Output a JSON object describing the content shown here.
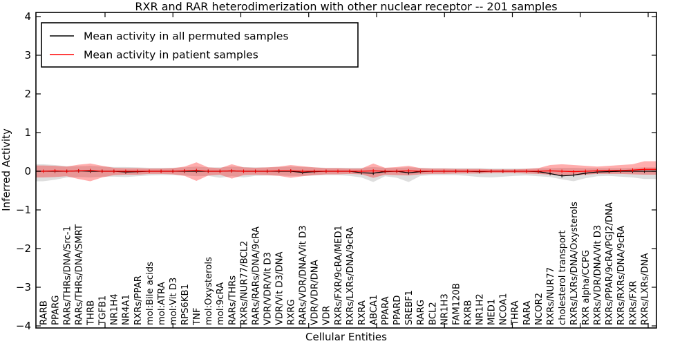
{
  "chart": {
    "title": "RXR and RAR heterodimerization with other nuclear receptor -- 201 samples",
    "xlabel": "Cellular Entities",
    "ylabel": "Inferred Activity"
  },
  "chart_data": {
    "type": "line",
    "title": "RXR and RAR heterodimerization with other nuclear receptor -- 201 samples",
    "sample_count": 201,
    "xlabel": "Cellular Entities",
    "ylabel": "Inferred Activity",
    "ylim": [
      -4,
      4
    ],
    "yticks": [
      4,
      3,
      2,
      1,
      0,
      -1,
      -2,
      -3,
      -4
    ],
    "ytick_labels": [
      "4",
      "3",
      "2",
      "1",
      "0",
      "−1",
      "−2",
      "−3",
      "−4"
    ],
    "grid": false,
    "legend_position": "upper left",
    "categories": [
      "RARB",
      "PPARG",
      "RARs/THRs/DNA/Src-1",
      "RARs/THRs/DNA/SMRT",
      "THRB",
      "TGFB1",
      "NR1H4",
      "NR4A1",
      "RXRs/PPAR",
      "mol:Bile acids",
      "mol:ATRA",
      "mol:Vit D3",
      "RPS6KB1",
      "TNF",
      "mol:Oxysterols",
      "mol:9cRA",
      "RARs/THRs",
      "RXRs/NUR77/BCL2",
      "RARs/RARs/DNA/9cRA",
      "VDR/VDR/Vit D3",
      "VDR/Vit D3/DNA",
      "RXRG",
      "RARs/VDR/DNA/Vit D3",
      "VDR/VDR/DNA",
      "VDR",
      "RXRs/FXR/9cRA/MED1",
      "RXRs/LXRs/DNA/9cRA",
      "RXRA",
      "ABCA1",
      "PPARA",
      "PPARD",
      "SREBF1",
      "RARG",
      "BCL2",
      "NR1H3",
      "FAM120B",
      "RXRB",
      "NR1H2",
      "MED1",
      "NCOA1",
      "THRA",
      "RARA",
      "NCOR2",
      "RXRs/NUR77",
      "cholesterol transport",
      "RXRs/LXRs/DNA/Oxysterols",
      "RXR alpha/CCPG",
      "RXRs/VDR/DNA/Vit D3",
      "RXRs/PPAR/9cRA/PGJ2/DNA",
      "RXRs/RXRs/DNA/9cRA",
      "RXRs/FXR",
      "RXRs/LXRs/DNA"
    ],
    "series": [
      {
        "name": "Mean activity in all permuted samples",
        "color": "#000000",
        "values": [
          0,
          0,
          0,
          0.01,
          0,
          0,
          0,
          -0.02,
          -0.01,
          0,
          0,
          0,
          0,
          0,
          0,
          0,
          0.01,
          0,
          0,
          0,
          0,
          0,
          -0.03,
          -0.01,
          0,
          0,
          0,
          -0.04,
          -0.05,
          -0.01,
          0,
          -0.04,
          -0.01,
          0,
          0,
          0,
          0,
          -0.01,
          0,
          0,
          0,
          0,
          -0.01,
          -0.06,
          -0.12,
          -0.1,
          -0.05,
          -0.02,
          -0.01,
          0,
          0,
          0
        ],
        "band": {
          "fill": "rgba(0,0,0,0.13)",
          "upper": [
            0.18,
            0.16,
            0.13,
            0.13,
            0.14,
            0.12,
            0.11,
            0.11,
            0.1,
            0.09,
            0.09,
            0.09,
            0.1,
            0.12,
            0.1,
            0.1,
            0.12,
            0.11,
            0.1,
            0.1,
            0.11,
            0.12,
            0.11,
            0.1,
            0.09,
            0.09,
            0.09,
            0.09,
            0.11,
            0.09,
            0.09,
            0.1,
            0.09,
            0.08,
            0.08,
            0.08,
            0.08,
            0.08,
            0.07,
            0.07,
            0.07,
            0.07,
            0.08,
            0.08,
            0.09,
            0.09,
            0.08,
            0.08,
            0.08,
            0.08,
            0.09,
            0.1
          ],
          "lower": [
            -0.26,
            -0.22,
            -0.16,
            -0.15,
            -0.16,
            -0.14,
            -0.14,
            -0.15,
            -0.13,
            -0.11,
            -0.1,
            -0.1,
            -0.11,
            -0.13,
            -0.12,
            -0.17,
            -0.13,
            -0.16,
            -0.12,
            -0.11,
            -0.11,
            -0.12,
            -0.12,
            -0.11,
            -0.1,
            -0.1,
            -0.12,
            -0.16,
            -0.28,
            -0.13,
            -0.17,
            -0.28,
            -0.12,
            -0.1,
            -0.1,
            -0.1,
            -0.12,
            -0.15,
            -0.16,
            -0.14,
            -0.12,
            -0.11,
            -0.13,
            -0.15,
            -0.21,
            -0.26,
            -0.18,
            -0.13,
            -0.12,
            -0.14,
            -0.16,
            -0.2
          ]
        }
      },
      {
        "name": "Mean activity in patient samples",
        "color": "#ff0000",
        "values": [
          0,
          0.01,
          0,
          0.01,
          0.02,
          0,
          0,
          0,
          0,
          0,
          0,
          0,
          0.01,
          0.02,
          0,
          0,
          0.01,
          0,
          0,
          0,
          0.01,
          0.01,
          0,
          0,
          0,
          0,
          0,
          0,
          0.01,
          0,
          0,
          0.01,
          0,
          0,
          0,
          0,
          0,
          0,
          0,
          0,
          0,
          0,
          0,
          0.01,
          0,
          -0.01,
          0,
          0.01,
          0.02,
          0.02,
          0.03,
          0.05
        ],
        "band": {
          "fill": "rgba(255,0,0,0.32)",
          "upper": [
            0.15,
            0.14,
            0.12,
            0.17,
            0.2,
            0.14,
            0.09,
            0.08,
            0.08,
            0.07,
            0.07,
            0.08,
            0.12,
            0.23,
            0.1,
            0.08,
            0.18,
            0.1,
            0.09,
            0.1,
            0.12,
            0.16,
            0.13,
            0.1,
            0.08,
            0.08,
            0.07,
            0.07,
            0.2,
            0.09,
            0.11,
            0.14,
            0.08,
            0.07,
            0.07,
            0.06,
            0.06,
            0.06,
            0.05,
            0.05,
            0.05,
            0.06,
            0.08,
            0.16,
            0.18,
            0.16,
            0.14,
            0.12,
            0.14,
            0.16,
            0.18,
            0.26
          ],
          "lower": [
            -0.16,
            -0.15,
            -0.13,
            -0.2,
            -0.26,
            -0.16,
            -0.1,
            -0.09,
            -0.09,
            -0.07,
            -0.07,
            -0.08,
            -0.12,
            -0.25,
            -0.11,
            -0.09,
            -0.19,
            -0.1,
            -0.09,
            -0.1,
            -0.12,
            -0.17,
            -0.13,
            -0.1,
            -0.08,
            -0.08,
            -0.07,
            -0.08,
            -0.17,
            -0.09,
            -0.1,
            -0.11,
            -0.08,
            -0.07,
            -0.07,
            -0.06,
            -0.06,
            -0.06,
            -0.05,
            -0.05,
            -0.05,
            -0.06,
            -0.07,
            -0.09,
            -0.11,
            -0.11,
            -0.09,
            -0.07,
            -0.07,
            -0.07,
            -0.08,
            -0.09
          ]
        }
      }
    ]
  }
}
